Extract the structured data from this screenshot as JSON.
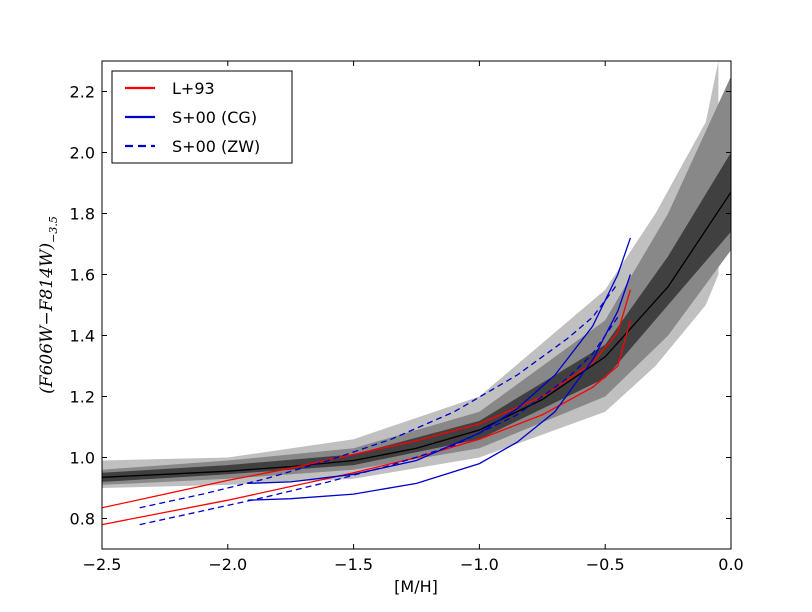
{
  "chart_data": {
    "type": "line",
    "xlabel": "[M/H]",
    "ylabel": "(F606W−F814W)",
    "ylabel_subscript": "−3.5",
    "xlim": [
      -2.5,
      0.0
    ],
    "ylim": [
      0.7,
      2.3
    ],
    "xticks": [
      -2.5,
      -2.0,
      -1.5,
      -1.0,
      -0.5,
      0.0
    ],
    "xtick_labels": [
      "−2.5",
      "−2.0",
      "−1.5",
      "−1.0",
      "−0.5",
      "0.0"
    ],
    "yticks": [
      0.8,
      1.0,
      1.2,
      1.4,
      1.6,
      1.8,
      2.0,
      2.2
    ],
    "ytick_labels": [
      "0.8",
      "1.0",
      "1.2",
      "1.4",
      "1.6",
      "1.8",
      "2.0",
      "2.2"
    ],
    "grid": false,
    "legend_position": "top-left",
    "legend": [
      {
        "label": "L+93",
        "color": "#ff0000",
        "style": "solid"
      },
      {
        "label": "S+00 (CG)",
        "color": "#0000cc",
        "style": "solid"
      },
      {
        "label": "S+00 (ZW)",
        "color": "#0000cc",
        "style": "dashed"
      }
    ],
    "density_bands": [
      {
        "level": "outer",
        "color": "#c0c0c0",
        "x": [
          -2.5,
          -2.0,
          -1.5,
          -1.0,
          -0.5,
          -0.3,
          -0.1,
          -0.05
        ],
        "y_low": [
          0.9,
          0.91,
          0.93,
          1.0,
          1.15,
          1.3,
          1.5,
          1.6
        ],
        "y_high": [
          0.99,
          1.0,
          1.06,
          1.2,
          1.55,
          1.8,
          2.1,
          2.3
        ]
      },
      {
        "level": "middle",
        "color": "#888888",
        "x": [
          -2.5,
          -2.0,
          -1.5,
          -1.0,
          -0.5,
          -0.25,
          0.0
        ],
        "y_low": [
          0.91,
          0.93,
          0.96,
          1.03,
          1.2,
          1.4,
          1.68
        ],
        "y_high": [
          0.96,
          0.99,
          1.03,
          1.15,
          1.45,
          1.8,
          2.25
        ]
      },
      {
        "level": "inner",
        "color": "#404040",
        "x": [
          -2.5,
          -2.0,
          -1.5,
          -1.0,
          -0.5,
          -0.25,
          0.0
        ],
        "y_low": [
          0.92,
          0.945,
          0.975,
          1.06,
          1.26,
          1.5,
          1.74
        ],
        "y_high": [
          0.95,
          0.975,
          1.01,
          1.12,
          1.37,
          1.66,
          2.0
        ]
      }
    ],
    "series": [
      {
        "role": "median-fit",
        "color": "#000000",
        "style": "solid",
        "x": [
          -2.5,
          -2.25,
          -2.0,
          -1.75,
          -1.5,
          -1.25,
          -1.0,
          -0.75,
          -0.5,
          -0.25,
          0.0
        ],
        "y": [
          0.935,
          0.945,
          0.955,
          0.97,
          0.99,
          1.03,
          1.09,
          1.19,
          1.33,
          1.56,
          1.87
        ]
      },
      {
        "legend_ref": 0,
        "color": "#ff0000",
        "style": "solid",
        "x": [
          -2.5,
          -2.25,
          -2.0,
          -1.75,
          -1.5,
          -1.25,
          -1.0,
          -0.75,
          -0.55,
          -0.45,
          -0.4
        ],
        "y": [
          0.78,
          0.82,
          0.86,
          0.905,
          0.95,
          1.0,
          1.06,
          1.14,
          1.23,
          1.3,
          1.45
        ]
      },
      {
        "legend_ref": 0,
        "color": "#ff0000",
        "style": "solid",
        "x": [
          -2.5,
          -2.25,
          -2.0,
          -1.75,
          -1.5,
          -1.25,
          -1.0,
          -0.75,
          -0.55,
          -0.45,
          -0.4
        ],
        "y": [
          0.835,
          0.88,
          0.925,
          0.965,
          1.01,
          1.055,
          1.11,
          1.2,
          1.31,
          1.41,
          1.55
        ]
      },
      {
        "legend_ref": 1,
        "color": "#0000cc",
        "style": "solid",
        "x": [
          -1.92,
          -1.75,
          -1.5,
          -1.25,
          -1.0,
          -0.85,
          -0.7,
          -0.55,
          -0.45,
          -0.4
        ],
        "y": [
          0.86,
          0.865,
          0.88,
          0.915,
          0.98,
          1.05,
          1.15,
          1.32,
          1.48,
          1.6
        ]
      },
      {
        "legend_ref": 1,
        "color": "#0000cc",
        "style": "solid",
        "x": [
          -1.92,
          -1.75,
          -1.5,
          -1.25,
          -1.0,
          -0.85,
          -0.7,
          -0.55,
          -0.45,
          -0.4
        ],
        "y": [
          0.915,
          0.92,
          0.945,
          0.99,
          1.08,
          1.16,
          1.27,
          1.43,
          1.6,
          1.72
        ]
      },
      {
        "legend_ref": 2,
        "color": "#0000cc",
        "style": "dashed",
        "x": [
          -2.35,
          -2.1,
          -1.85,
          -1.6,
          -1.35,
          -1.1,
          -0.85,
          -0.65,
          -0.55,
          -0.45
        ],
        "y": [
          0.78,
          0.825,
          0.87,
          0.92,
          0.975,
          1.04,
          1.14,
          1.26,
          1.34,
          1.46
        ]
      },
      {
        "legend_ref": 2,
        "color": "#0000cc",
        "style": "dashed",
        "x": [
          -2.35,
          -2.1,
          -1.85,
          -1.6,
          -1.35,
          -1.1,
          -0.85,
          -0.65,
          -0.55,
          -0.45
        ],
        "y": [
          0.835,
          0.88,
          0.93,
          0.99,
          1.06,
          1.15,
          1.27,
          1.39,
          1.46,
          1.57
        ]
      }
    ]
  }
}
